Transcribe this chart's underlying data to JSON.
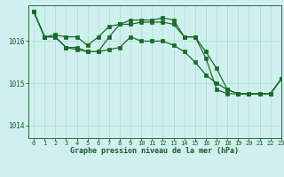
{
  "title": "Graphe pression niveau de la mer (hPa)",
  "bg_color": "#cff0ee",
  "grid_color": "#aaddcc",
  "line_color": "#1a6b2a",
  "xlim": [
    -0.5,
    23
  ],
  "ylim": [
    1013.7,
    1016.85
  ],
  "yticks": [
    1014,
    1015,
    1016
  ],
  "xticks": [
    0,
    1,
    2,
    3,
    4,
    5,
    6,
    7,
    8,
    9,
    10,
    11,
    12,
    13,
    14,
    15,
    16,
    17,
    18,
    19,
    20,
    21,
    22,
    23
  ],
  "series1": {
    "x": [
      0,
      1,
      2,
      3,
      4,
      5,
      6,
      7,
      8,
      9,
      10,
      11,
      12,
      13,
      14,
      15,
      16,
      17,
      18,
      19,
      20,
      21,
      22,
      23
    ],
    "y": [
      1016.7,
      1016.1,
      1016.1,
      1015.85,
      1015.85,
      1015.75,
      1015.75,
      1015.8,
      1015.85,
      1016.1,
      1016.0,
      1016.0,
      1016.0,
      1015.9,
      1015.75,
      1015.5,
      1015.2,
      1015.0,
      1014.85,
      1014.75,
      1014.75,
      1014.75,
      1014.75,
      1015.1
    ]
  },
  "series2": {
    "x": [
      0,
      1,
      2,
      3,
      4,
      5,
      6,
      7,
      8,
      9,
      10,
      11,
      12,
      13,
      14,
      15,
      16,
      17,
      18,
      19,
      20,
      21,
      22,
      23
    ],
    "y": [
      1016.7,
      1016.1,
      1016.1,
      1015.85,
      1015.8,
      1015.75,
      1015.75,
      1016.1,
      1016.4,
      1016.4,
      1016.45,
      1016.45,
      1016.45,
      1016.4,
      1016.1,
      1016.1,
      1015.6,
      1014.85,
      1014.75,
      1014.75,
      1014.75,
      1014.75,
      1014.75,
      1015.1
    ]
  },
  "series3": {
    "x": [
      0,
      1,
      2,
      3,
      4,
      5,
      6,
      7,
      8,
      9,
      10,
      11,
      12,
      13,
      14,
      15,
      16,
      17,
      18,
      19,
      20,
      21,
      22,
      23
    ],
    "y": [
      1016.7,
      1016.1,
      1016.15,
      1016.1,
      1016.1,
      1015.9,
      1016.1,
      1016.35,
      1016.4,
      1016.5,
      1016.5,
      1016.5,
      1016.55,
      1016.5,
      1016.1,
      1016.1,
      1015.75,
      1015.35,
      1014.85,
      1014.75,
      1014.75,
      1014.75,
      1014.75,
      1015.1
    ]
  }
}
